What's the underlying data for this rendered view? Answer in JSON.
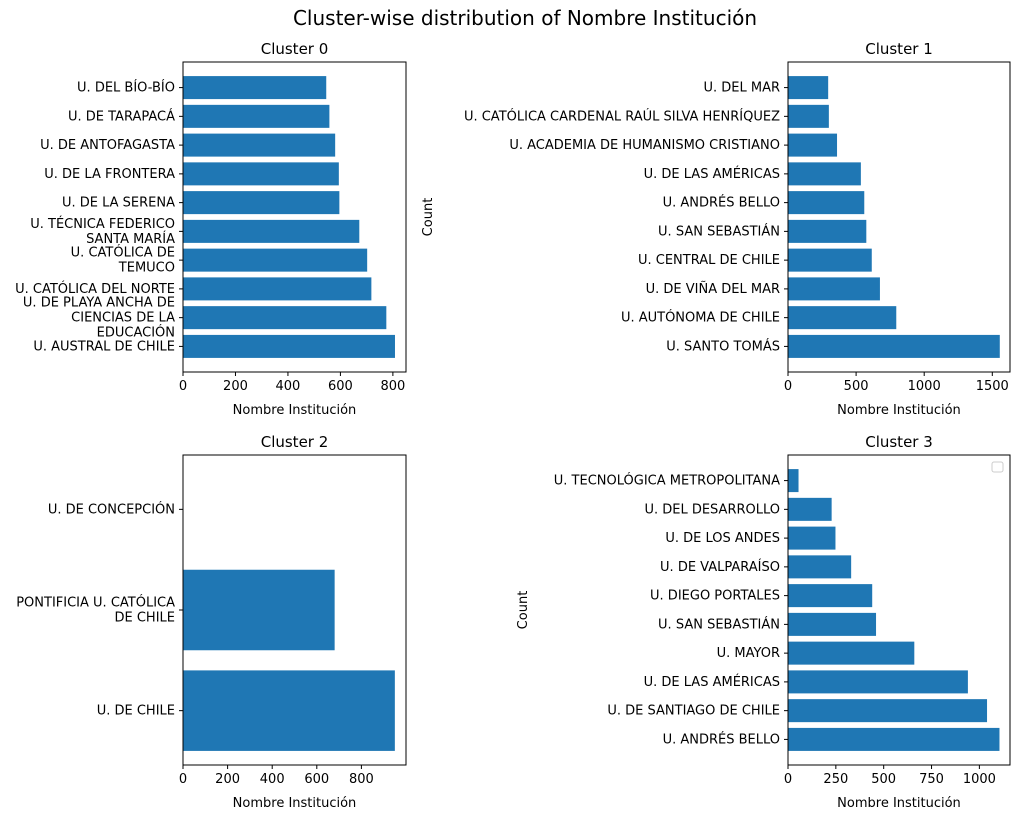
{
  "suptitle": "Cluster-wise distribution of Nombre Institución",
  "colors": {
    "bar": "#1f77b4",
    "axis": "#000000",
    "background": "#ffffff",
    "legend_border": "#cccccc"
  },
  "chart_data": [
    {
      "type": "bar",
      "orientation": "horizontal",
      "title": "Cluster 0",
      "xlabel": "Nombre Institución",
      "ylabel": "",
      "xlim": [
        0,
        850
      ],
      "xticks": [
        0,
        200,
        400,
        600,
        800
      ],
      "categories": [
        [
          "U. AUSTRAL DE CHILE"
        ],
        [
          "U. DE PLAYA ANCHA DE",
          "CIENCIAS DE LA",
          "EDUCACIÓN"
        ],
        [
          "U. CATÓLICA DEL NORTE"
        ],
        [
          "U. CATÓLICA DE",
          "TEMUCO"
        ],
        [
          "U. TÉCNICA FEDERICO",
          "SANTA MARÍA"
        ],
        [
          "U. DE LA SERENA"
        ],
        [
          "U. DE LA FRONTERA"
        ],
        [
          "U. DE ANTOFAGASTA"
        ],
        [
          "U. DE TARAPACÁ"
        ],
        [
          "U. DEL BÍO-BÍO"
        ]
      ],
      "values": [
        808,
        775,
        718,
        702,
        672,
        596,
        594,
        580,
        558,
        546
      ],
      "legend": false
    },
    {
      "type": "bar",
      "orientation": "horizontal",
      "title": "Cluster 1",
      "xlabel": "Nombre Institución",
      "ylabel": "Count",
      "xlim": [
        0,
        1630
      ],
      "xticks": [
        0,
        500,
        1000,
        1500
      ],
      "categories": [
        [
          "U. SANTO TOMÁS"
        ],
        [
          "U. AUTÓNOMA DE CHILE"
        ],
        [
          "U. DE VIÑA DEL MAR"
        ],
        [
          "U. CENTRAL DE CHILE"
        ],
        [
          "U. SAN SEBASTIÁN"
        ],
        [
          "U. ANDRÉS BELLO"
        ],
        [
          "U. DE LAS AMÉRICAS"
        ],
        [
          "U. ACADEMIA DE HUMANISMO CRISTIANO"
        ],
        [
          "U. CATÓLICA CARDENAL RAÚL SILVA HENRÍQUEZ"
        ],
        [
          "U. DEL MAR"
        ]
      ],
      "values": [
        1555,
        795,
        675,
        615,
        575,
        560,
        535,
        360,
        300,
        295
      ],
      "legend": false
    },
    {
      "type": "bar",
      "orientation": "horizontal",
      "title": "Cluster 2",
      "xlabel": "Nombre Institución",
      "ylabel": "",
      "xlim": [
        0,
        1000
      ],
      "xticks": [
        0,
        200,
        400,
        600,
        800
      ],
      "categories": [
        [
          "U. DE CHILE"
        ],
        [
          "PONTIFICIA U. CATÓLICA",
          "DE CHILE"
        ],
        [
          "U. DE CONCEPCIÓN"
        ]
      ],
      "values": [
        950,
        680,
        0
      ],
      "legend": false
    },
    {
      "type": "bar",
      "orientation": "horizontal",
      "title": "Cluster 3",
      "xlabel": "Nombre Institución",
      "ylabel": "Count",
      "xlim": [
        0,
        1160
      ],
      "xticks": [
        0,
        250,
        500,
        750,
        1000
      ],
      "categories": [
        [
          "U. ANDRÉS BELLO"
        ],
        [
          "U. DE SANTIAGO DE CHILE"
        ],
        [
          "U. DE LAS AMÉRICAS"
        ],
        [
          "U. MAYOR"
        ],
        [
          "U. SAN SEBASTIÁN"
        ],
        [
          "U. DIEGO PORTALES"
        ],
        [
          "U. DE VALPARAÍSO"
        ],
        [
          "U. DE LOS ANDES"
        ],
        [
          "U. DEL DESARROLLO"
        ],
        [
          "U. TECNOLÓGICA METROPOLITANA"
        ]
      ],
      "values": [
        1105,
        1040,
        940,
        660,
        460,
        440,
        330,
        248,
        228,
        55
      ],
      "legend": true,
      "legend_position": "top-right"
    }
  ]
}
